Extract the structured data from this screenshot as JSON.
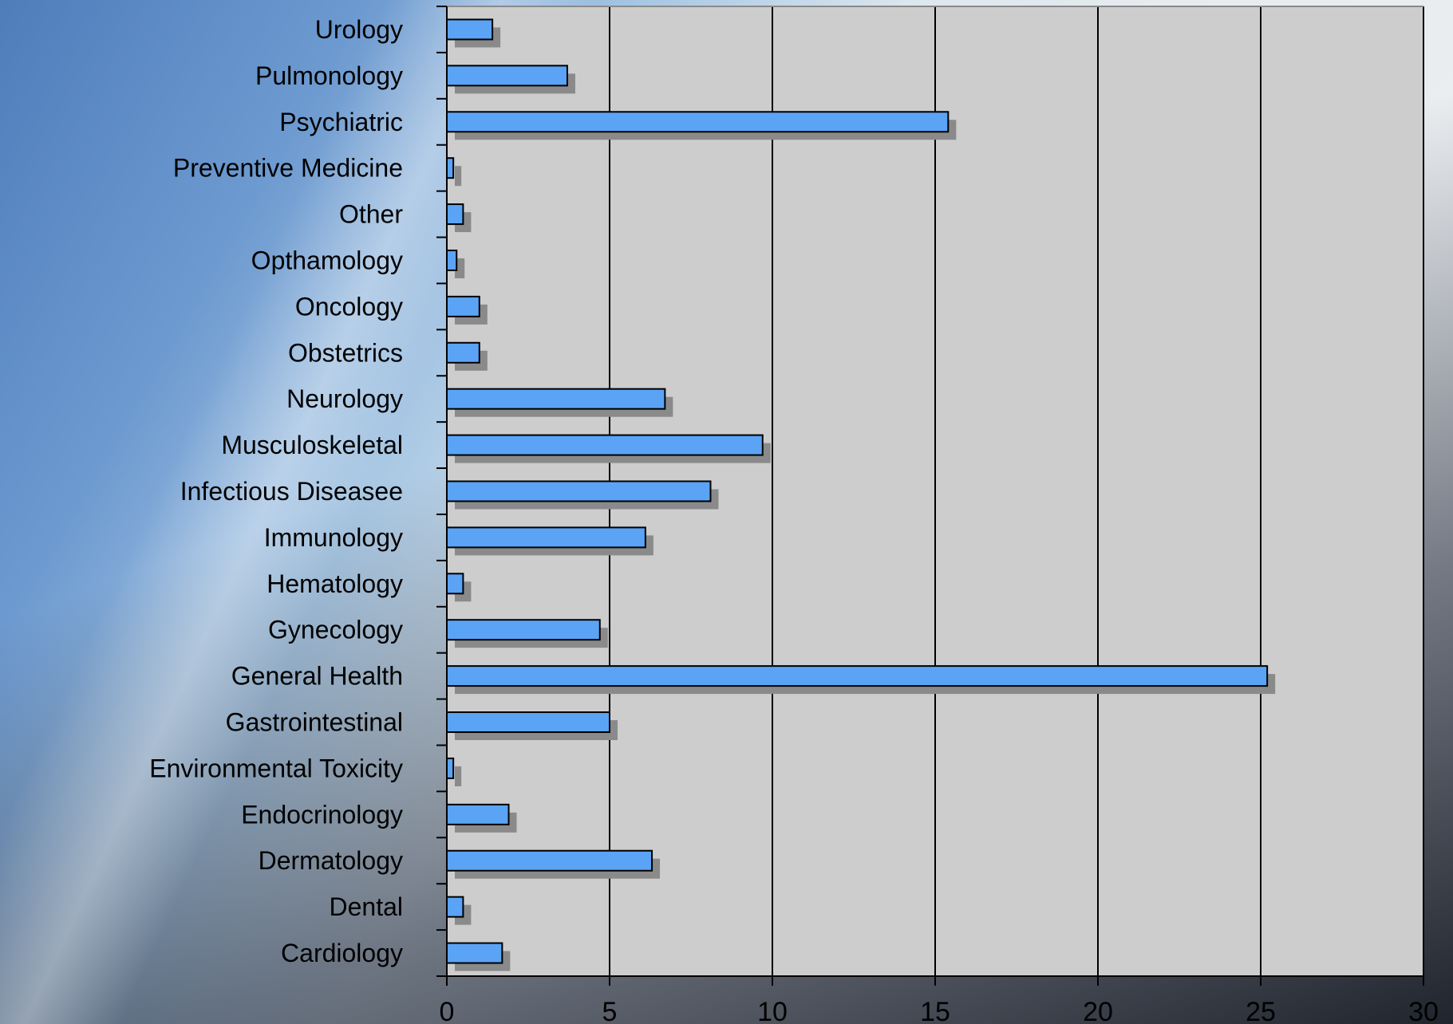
{
  "colors": {
    "bar_fill": "#5ba3f5",
    "bar_stroke": "#000000",
    "bar_shadow": "#8a8a8a",
    "plot_bg": "#cdcdcd",
    "grid": "#000000"
  },
  "chart_data": {
    "type": "bar",
    "orientation": "horizontal",
    "categories": [
      "Urology",
      "Pulmonology",
      "Psychiatric",
      "Preventive Medicine",
      "Other",
      "Opthamology",
      "Oncology",
      "Obstetrics",
      "Neurology",
      "Musculoskeletal",
      "Infectious Diseasee",
      "Immunology",
      "Hematology",
      "Gynecology",
      "General Health",
      "Gastrointestinal",
      "Environmental Toxicity",
      "Endocrinology",
      "Dermatology",
      "Dental",
      "Cardiology"
    ],
    "values": [
      1.4,
      3.7,
      15.4,
      0.2,
      0.5,
      0.3,
      1.0,
      1.0,
      6.7,
      9.7,
      8.1,
      6.1,
      0.5,
      4.7,
      25.2,
      5.0,
      0.2,
      1.9,
      6.3,
      0.5,
      1.7
    ],
    "xlim": [
      0,
      30
    ],
    "xticks": [
      "0",
      "5",
      "10",
      "15",
      "20",
      "25",
      "30"
    ],
    "xtick_values": [
      0,
      5,
      10,
      15,
      20,
      25,
      30
    ],
    "title": "",
    "xlabel": "",
    "ylabel": "",
    "grid": "vertical",
    "legend": "none"
  }
}
